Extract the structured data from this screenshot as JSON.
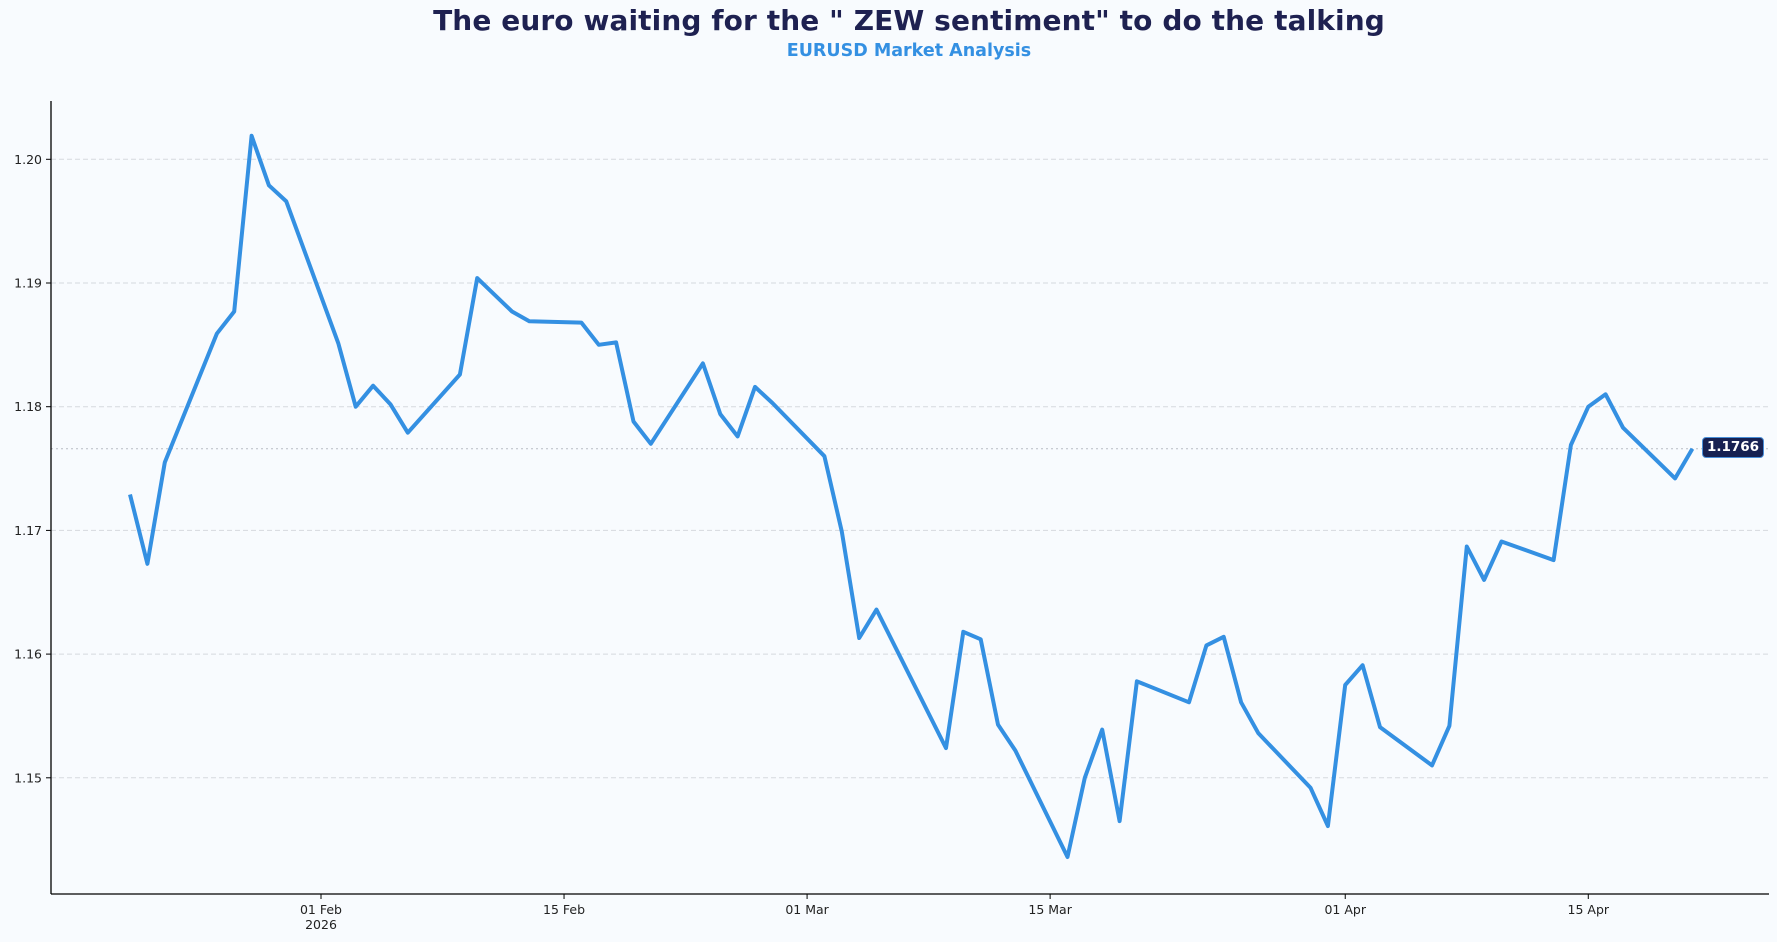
{
  "header": {
    "title": "The euro waiting for the \" ZEW sentiment\" to do the talking",
    "subtitle": "EURUSD Market Analysis"
  },
  "colors": {
    "line": "#3490e2",
    "title": "#1e2151",
    "subtitle": "#3490e2",
    "label_bg": "#172152",
    "background": "#f8fbfe",
    "grid": "#d5d9de"
  },
  "last_value_label": "1.1766",
  "chart_data": {
    "type": "line",
    "title": "The euro waiting for the \" ZEW sentiment\" to do the talking",
    "subtitle": "EURUSD Market Analysis",
    "xlabel": "",
    "ylabel": "",
    "ylim": [
      1.1405,
      1.2047
    ],
    "grid": true,
    "legend": null,
    "y_ticks": [
      "1.15",
      "1.16",
      "1.17",
      "1.18",
      "1.19",
      "1.20"
    ],
    "x_ticks": [
      {
        "label": "01 Feb",
        "sublabel": "2026",
        "day": 0
      },
      {
        "label": "15 Feb",
        "sublabel": "",
        "day": 14
      },
      {
        "label": "01 Mar",
        "sublabel": "",
        "day": 28
      },
      {
        "label": "15 Mar",
        "sublabel": "",
        "day": 42
      },
      {
        "label": "01 Apr",
        "sublabel": "",
        "day": 59
      },
      {
        "label": "15 Apr",
        "sublabel": "",
        "day": 73
      }
    ],
    "annotations": [
      {
        "type": "last-value",
        "value": 1.1766,
        "label": "1.1766"
      }
    ],
    "series": [
      {
        "name": "EURUSD",
        "x": [
          "2026-01-21",
          "2026-01-22",
          "2026-01-23",
          "2026-01-26",
          "2026-01-27",
          "2026-01-28",
          "2026-01-29",
          "2026-01-30",
          "2026-02-02",
          "2026-02-03",
          "2026-02-04",
          "2026-02-05",
          "2026-02-06",
          "2026-02-09",
          "2026-02-10",
          "2026-02-12",
          "2026-02-13",
          "2026-02-16",
          "2026-02-17",
          "2026-02-18",
          "2026-02-19",
          "2026-02-20",
          "2026-02-23",
          "2026-02-24",
          "2026-02-25",
          "2026-02-26",
          "2026-02-27",
          "2026-03-02",
          "2026-03-03",
          "2026-03-04",
          "2026-03-05",
          "2026-03-09",
          "2026-03-10",
          "2026-03-11",
          "2026-03-12",
          "2026-03-13",
          "2026-03-16",
          "2026-03-17",
          "2026-03-18",
          "2026-03-19",
          "2026-03-20",
          "2026-03-23",
          "2026-03-24",
          "2026-03-25",
          "2026-03-26",
          "2026-03-27",
          "2026-03-30",
          "2026-03-31",
          "2026-04-01",
          "2026-04-02",
          "2026-04-03",
          "2026-04-06",
          "2026-04-07",
          "2026-04-08",
          "2026-04-09",
          "2026-04-10",
          "2026-04-13",
          "2026-04-14",
          "2026-04-15",
          "2026-04-16",
          "2026-04-17",
          "2026-04-20",
          "2026-04-21"
        ],
        "day": [
          -11,
          -10,
          -9,
          -6,
          -5,
          -4,
          -3,
          -2,
          1,
          2,
          3,
          4,
          5,
          8,
          9,
          11,
          12,
          15,
          16,
          17,
          18,
          19,
          22,
          23,
          24,
          25,
          26,
          29,
          30,
          31,
          32,
          36,
          37,
          38,
          39,
          40,
          43,
          44,
          45,
          46,
          47,
          50,
          51,
          52,
          53,
          54,
          57,
          58,
          59,
          60,
          61,
          64,
          65,
          66,
          67,
          68,
          71,
          72,
          73,
          74,
          75,
          78,
          79
        ],
        "values": [
          1.1729,
          1.1673,
          1.1755,
          1.1859,
          1.1877,
          1.2019,
          1.1979,
          1.1966,
          1.1851,
          1.18,
          1.1817,
          1.1802,
          1.1779,
          1.1826,
          1.1904,
          1.1877,
          1.1869,
          1.1868,
          1.185,
          1.1852,
          1.1788,
          1.177,
          1.1835,
          1.1794,
          1.1776,
          1.1816,
          1.1803,
          1.176,
          1.1699,
          1.1613,
          1.1636,
          1.1524,
          1.1618,
          1.1612,
          1.1543,
          1.1522,
          1.1436,
          1.15,
          1.1539,
          1.1465,
          1.1578,
          1.1561,
          1.1607,
          1.1614,
          1.1561,
          1.1536,
          1.1492,
          1.1461,
          1.1575,
          1.1591,
          1.1541,
          1.151,
          1.1542,
          1.1687,
          1.166,
          1.1691,
          1.1676,
          1.1769,
          1.18,
          1.181,
          1.1783,
          1.1742,
          1.1766
        ]
      }
    ]
  }
}
